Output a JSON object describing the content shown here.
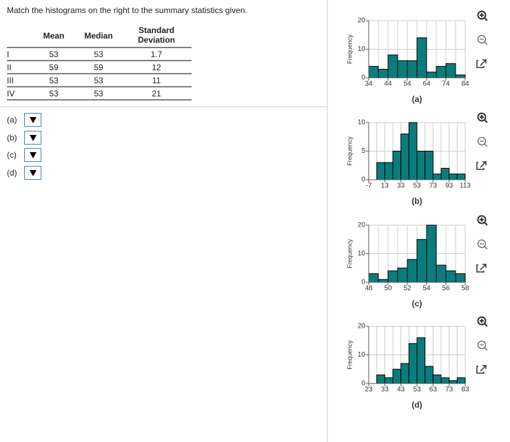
{
  "question": "Match the histograms on the right to the summary statistics given.",
  "table": {
    "header": [
      "Mean",
      "Median",
      "Standard Deviation"
    ],
    "rows": [
      [
        "I",
        53,
        53,
        1.7
      ],
      [
        "II",
        59,
        59,
        12
      ],
      [
        "III",
        53,
        53,
        11
      ],
      [
        "IV",
        53,
        53,
        21
      ]
    ]
  },
  "answers": [
    "(a)",
    "(b)",
    "(c)",
    "(d)"
  ],
  "chart_data": [
    {
      "type": "histogram",
      "y_label": "Frequency",
      "x_label": "(a)",
      "color": "#0b7c7c",
      "grid": true,
      "bins": [
        34,
        39,
        44,
        49,
        54,
        59,
        64,
        69,
        74,
        79,
        84
      ],
      "values": [
        4,
        3,
        8,
        6,
        6,
        14,
        2,
        4,
        5,
        1
      ],
      "xlim": [
        34,
        84
      ],
      "ylim": [
        0,
        20
      ],
      "xticks": [
        34,
        44,
        54,
        64,
        74,
        84
      ],
      "yticks": [
        0,
        10,
        20
      ]
    },
    {
      "type": "histogram",
      "y_label": "Frequency",
      "x_label": "(b)",
      "color": "#0b7c7c",
      "grid": true,
      "bins": [
        -7,
        3,
        13,
        23,
        33,
        43,
        53,
        63,
        73,
        83,
        93,
        103,
        113
      ],
      "values": [
        0,
        3,
        3,
        5,
        8,
        10,
        5,
        5,
        1,
        2,
        1,
        1
      ],
      "xlim": [
        -7,
        113
      ],
      "ylim": [
        0,
        10
      ],
      "xticks": [
        -7,
        13,
        33,
        53,
        73,
        93,
        113
      ],
      "yticks": [
        0,
        5,
        10
      ]
    },
    {
      "type": "histogram",
      "y_label": "Frequency",
      "x_label": "(c)",
      "color": "#0b7c7c",
      "grid": true,
      "bins": [
        48,
        49,
        50,
        51,
        52,
        53,
        54,
        55,
        56,
        57,
        58
      ],
      "values": [
        3,
        1,
        4,
        5,
        8,
        15,
        20,
        6,
        4,
        3
      ],
      "xlim": [
        48,
        58
      ],
      "ylim": [
        0,
        20
      ],
      "xticks": [
        48,
        50,
        52,
        54,
        56,
        58
      ],
      "yticks": [
        0,
        10,
        20
      ]
    },
    {
      "type": "histogram",
      "y_label": "Frequency",
      "x_label": "(d)",
      "color": "#0b7c7c",
      "grid": true,
      "bins": [
        23,
        28,
        33,
        38,
        43,
        48,
        53,
        58,
        63,
        68,
        73,
        78,
        83
      ],
      "values": [
        0,
        3,
        2,
        5,
        7,
        14,
        16,
        6,
        3,
        2,
        1,
        2
      ],
      "xlim": [
        23,
        83
      ],
      "ylim": [
        0,
        20
      ],
      "xticks": [
        23,
        33,
        43,
        53,
        63,
        73,
        83
      ],
      "yticks": [
        0,
        10,
        20
      ]
    }
  ]
}
